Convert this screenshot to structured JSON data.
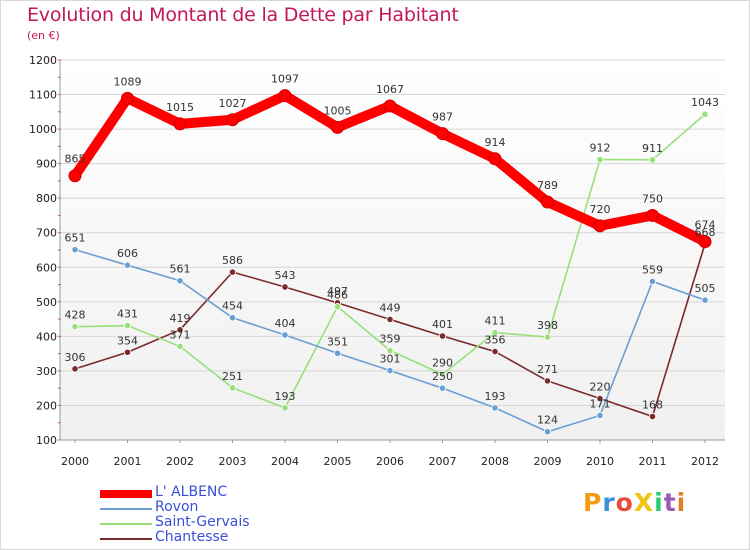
{
  "chart_data": {
    "type": "line",
    "title": "Evolution du Montant de la Dette par Habitant",
    "subtitle": "(en €)",
    "x": [
      "2000",
      "2001",
      "2002",
      "2003",
      "2004",
      "2005",
      "2006",
      "2007",
      "2008",
      "2009",
      "2010",
      "2011",
      "2012"
    ],
    "yticks": [
      100,
      200,
      300,
      400,
      500,
      600,
      700,
      800,
      900,
      1000,
      1100,
      1200
    ],
    "ylim": [
      100,
      1200
    ],
    "grid": true,
    "legend_position": "bottom-left",
    "series": [
      {
        "name": "L' ALBENC",
        "color": "#ff0000",
        "values": [
          865,
          1089,
          1015,
          1027,
          1097,
          1005,
          1067,
          987,
          914,
          789,
          720,
          750,
          674
        ]
      },
      {
        "name": "Rovon",
        "color": "#6a9fd4",
        "values": [
          651,
          606,
          561,
          454,
          404,
          351,
          301,
          250,
          193,
          124,
          171,
          559,
          505
        ]
      },
      {
        "name": "Saint-Gervais",
        "color": "#99e07a",
        "values": [
          428,
          431,
          371,
          251,
          193,
          486,
          359,
          290,
          411,
          398,
          912,
          911,
          1043
        ]
      },
      {
        "name": "Chantesse",
        "color": "#7a2a2a",
        "values": [
          306,
          354,
          419,
          586,
          543,
          497,
          449,
          401,
          356,
          271,
          220,
          168,
          668
        ]
      }
    ]
  },
  "logo": {
    "text": "ProXiti",
    "colors": [
      "#f39c12",
      "#3a8fd9",
      "#e74c3c",
      "#f1c40f",
      "#2ecc71",
      "#9b59b6",
      "#e67e22"
    ]
  }
}
